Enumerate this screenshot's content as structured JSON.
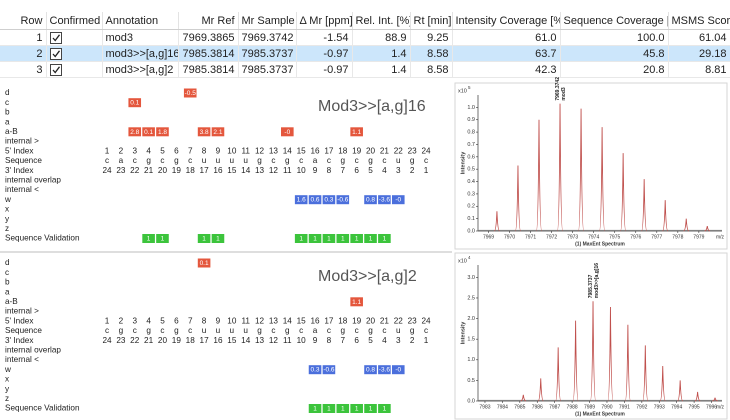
{
  "table": {
    "columns": [
      "Row",
      "Confirmed",
      "Annotation",
      "Mr Ref",
      "Mr Sample",
      "Δ Mr [ppm]",
      "Rel. Int. [%]",
      "Rt [min]",
      "Intensity Coverage [%]",
      "Sequence Coverage [%]",
      "MSMS Score"
    ],
    "selected_row": 2,
    "rows": [
      [
        1,
        true,
        "mod3",
        7969.3865,
        7969.3742,
        -1.54,
        88.9,
        9.25,
        "61.0",
        "100.0",
        61.04
      ],
      [
        2,
        true,
        "mod3>>[a,g]16",
        7985.3814,
        7985.3737,
        -0.97,
        1.4,
        8.58,
        63.7,
        45.8,
        29.18
      ],
      [
        3,
        true,
        "mod3>>[a,g]2",
        7985.3814,
        7985.3737,
        -0.97,
        1.4,
        8.58,
        42.3,
        20.8,
        8.81
      ]
    ]
  },
  "fragment_maps": [
    {
      "label": "Mod3>>[a,g]16",
      "rows": [
        {
          "label": "d",
          "color": "#e4573d",
          "marks": [
            {
              "position": 7,
              "value": -0.5
            }
          ]
        },
        {
          "label": "c",
          "color": "#e4573d",
          "marks": [
            {
              "position": 3,
              "value": 0.1
            }
          ]
        },
        {
          "label": "b",
          "color": "#e4573d",
          "marks": []
        },
        {
          "label": "a",
          "color": "#e4573d",
          "marks": []
        },
        {
          "label": "a-B",
          "color": "#e4573d",
          "marks": [
            {
              "position": 3,
              "value": 2.8
            },
            {
              "position": 4,
              "value": 0.1
            },
            {
              "position": 5,
              "value": 1.8
            },
            {
              "position": 8,
              "value": 3.8
            },
            {
              "position": 9,
              "value": 2.1
            },
            {
              "position": 14,
              "value": 0,
              "label": "-0"
            },
            {
              "position": 19,
              "value": 1.1
            }
          ]
        },
        {
          "label": "internal >",
          "marks": []
        },
        {
          "label": "5' Index",
          "values": [
            1,
            2,
            3,
            4,
            5,
            6,
            7,
            8,
            9,
            10,
            11,
            12,
            13,
            14,
            15,
            16,
            17,
            18,
            19,
            20,
            21,
            22,
            23,
            24
          ]
        },
        {
          "label": "Sequence",
          "values": [
            "c",
            "a",
            "c",
            "g",
            "c",
            "g",
            "c",
            "u",
            "u",
            "u",
            "u",
            "g",
            "c",
            "g",
            "c",
            "a",
            "c",
            "g",
            "c",
            "g",
            "c",
            "u",
            "g",
            "c"
          ]
        },
        {
          "label": "3' Index",
          "values": [
            24,
            23,
            22,
            21,
            20,
            19,
            18,
            17,
            16,
            15,
            14,
            13,
            12,
            11,
            10,
            9,
            8,
            7,
            6,
            5,
            4,
            3,
            2,
            1
          ]
        },
        {
          "label": "internal overlap",
          "marks": []
        },
        {
          "label": "internal <",
          "marks": []
        },
        {
          "label": "w",
          "color": "#4b6fdc",
          "marks": [
            {
              "position": 15,
              "value": 1.6
            },
            {
              "position": 16,
              "value": 0.6
            },
            {
              "position": 17,
              "value": 0.3
            },
            {
              "position": 18,
              "value": -0.6
            },
            {
              "position": 20,
              "value": 0.8
            },
            {
              "position": 21,
              "value": -3.6
            },
            {
              "position": 22,
              "value": 0,
              "label": "-0"
            }
          ]
        },
        {
          "label": "x",
          "color": "#4b6fdc",
          "marks": []
        },
        {
          "label": "y",
          "color": "#4b6fdc",
          "marks": []
        },
        {
          "label": "z",
          "color": "#4b6fdc",
          "marks": []
        },
        {
          "label": "Sequence Validation",
          "color": "#3cc43c",
          "marks": [
            {
              "position": 4,
              "value": 1
            },
            {
              "position": 5,
              "value": 1
            },
            {
              "position": 8,
              "value": 1
            },
            {
              "position": 9,
              "value": 1
            },
            {
              "position": 15,
              "value": 1
            },
            {
              "position": 16,
              "value": 1
            },
            {
              "position": 17,
              "value": 1
            },
            {
              "position": 18,
              "value": 1
            },
            {
              "position": 19,
              "value": 1
            },
            {
              "position": 20,
              "value": 1
            },
            {
              "position": 21,
              "value": 1
            }
          ]
        }
      ]
    },
    {
      "label": "Mod3>>[a,g]2",
      "rows": [
        {
          "label": "d",
          "color": "#e4573d",
          "marks": [
            {
              "position": 8,
              "value": 0.1
            }
          ]
        },
        {
          "label": "c",
          "color": "#e4573d",
          "marks": []
        },
        {
          "label": "b",
          "color": "#e4573d",
          "marks": []
        },
        {
          "label": "a",
          "color": "#e4573d",
          "marks": []
        },
        {
          "label": "a-B",
          "color": "#e4573d",
          "marks": [
            {
              "position": 19,
              "value": 1.1
            }
          ]
        },
        {
          "label": "internal >",
          "marks": []
        },
        {
          "label": "5' Index",
          "values": [
            1,
            2,
            3,
            4,
            5,
            6,
            7,
            8,
            9,
            10,
            11,
            12,
            13,
            14,
            15,
            16,
            17,
            18,
            19,
            20,
            21,
            22,
            23,
            24
          ]
        },
        {
          "label": "Sequence",
          "values": [
            "c",
            "g",
            "c",
            "g",
            "c",
            "g",
            "c",
            "u",
            "u",
            "u",
            "u",
            "g",
            "c",
            "g",
            "c",
            "a",
            "c",
            "g",
            "c",
            "g",
            "c",
            "u",
            "g",
            "c"
          ]
        },
        {
          "label": "3' Index",
          "values": [
            24,
            23,
            22,
            21,
            20,
            19,
            18,
            17,
            16,
            15,
            14,
            13,
            12,
            11,
            10,
            9,
            8,
            7,
            6,
            5,
            4,
            3,
            2,
            1
          ]
        },
        {
          "label": "internal overlap",
          "marks": []
        },
        {
          "label": "internal <",
          "marks": []
        },
        {
          "label": "w",
          "color": "#4b6fdc",
          "marks": [
            {
              "position": 16,
              "value": 0.3
            },
            {
              "position": 17,
              "value": -0.6
            },
            {
              "position": 20,
              "value": 0.8
            },
            {
              "position": 21,
              "value": -3.6
            },
            {
              "position": 22,
              "value": 0,
              "label": "-0"
            }
          ]
        },
        {
          "label": "x",
          "color": "#4b6fdc",
          "marks": []
        },
        {
          "label": "y",
          "color": "#4b6fdc",
          "marks": []
        },
        {
          "label": "z",
          "color": "#4b6fdc",
          "marks": []
        },
        {
          "label": "Sequence Validation",
          "color": "#3cc43c",
          "marks": [
            {
              "position": 16,
              "value": 1
            },
            {
              "position": 17,
              "value": 1
            },
            {
              "position": 18,
              "value": 1
            },
            {
              "position": 19,
              "value": 1
            },
            {
              "position": 20,
              "value": 1
            },
            {
              "position": 21,
              "value": 1
            }
          ]
        }
      ]
    }
  ],
  "chart_data": [
    {
      "type": "spectrum",
      "caption": "(1) MaxEnt Spectrum",
      "x_label": "m/z",
      "y_label": "Intensity",
      "y_multiplier": {
        "base": "x10",
        "exponent": 5
      },
      "color": "#c0504d",
      "x": [
        7969.4,
        7970.4,
        7971.4,
        7972.4,
        7973.4,
        7974.4,
        7975.4,
        7976.4,
        7977.4,
        7978.4,
        7979.4
      ],
      "values": [
        0.16,
        0.53,
        0.9,
        1.03,
        0.99,
        0.84,
        0.63,
        0.42,
        0.25,
        0.1,
        0.04
      ],
      "annotation": [
        "7969.3742",
        "mod3"
      ],
      "xlim": [
        7968.5,
        7980.1
      ],
      "xticks": [
        7969,
        7970,
        7971,
        7972,
        7973,
        7974,
        7975,
        7976,
        7977,
        7978,
        7979
      ],
      "ylim": [
        0,
        1.1
      ],
      "yticks": [
        {
          "value": 0,
          "label": "0.0"
        },
        0.1,
        0.2,
        0.3,
        0.4,
        0.5,
        0.6,
        0.7,
        0.8,
        0.9,
        {
          "value": 1,
          "label": "1.0"
        }
      ]
    },
    {
      "type": "spectrum",
      "caption": "(1) MaxEnt Spectrum",
      "x_label": "m/z",
      "y_label": "Intensity",
      "y_multiplier": {
        "base": "x10",
        "exponent": 4
      },
      "color": "#c0504d",
      "x": [
        7985.2,
        7986.2,
        7987.2,
        7988.2,
        7989.2,
        7990.2,
        7991.2,
        7992.2,
        7993.2,
        7994.2,
        7995.2,
        7996.2
      ],
      "values": [
        0.15,
        0.55,
        1.3,
        1.95,
        2.42,
        2.28,
        1.85,
        1.35,
        0.85,
        0.5,
        0.22,
        0.08
      ],
      "annotation": [
        "7985.3737",
        "mod3>>[a,g]16"
      ],
      "xlim": [
        7982.6,
        7996.6
      ],
      "xticks": [
        7983,
        7984,
        7985,
        7986,
        7987,
        7988,
        7989,
        7990,
        7991,
        7992,
        7993,
        7994,
        7995,
        7996
      ],
      "ylim": [
        0,
        3.3
      ],
      "yticks": [
        {
          "value": 0,
          "label": "0.0"
        },
        0.5,
        {
          "value": 1,
          "label": "1.0"
        },
        1.5,
        {
          "value": 2,
          "label": "2.0"
        },
        2.5,
        {
          "value": 3,
          "label": "3.0"
        }
      ]
    }
  ]
}
